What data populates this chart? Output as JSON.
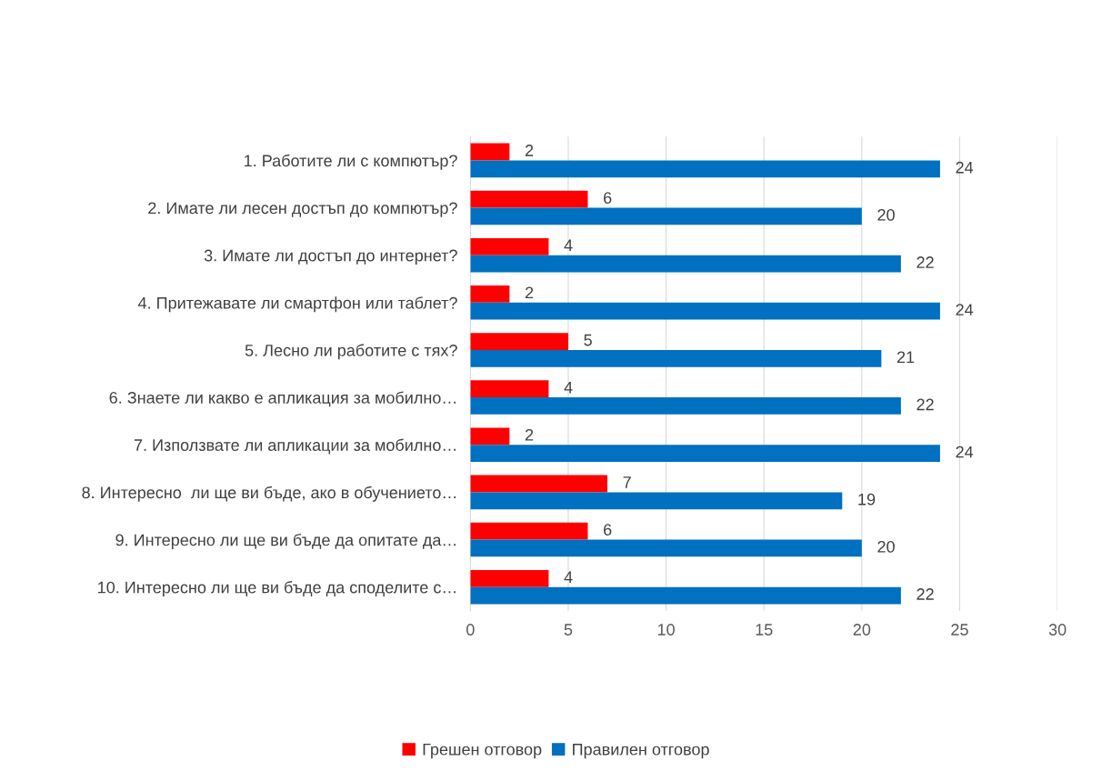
{
  "chart_data": {
    "type": "bar",
    "orientation": "horizontal",
    "categories": [
      "1. Работите ли с компютър?",
      "2. Имате ли лесен достъп до компютър?",
      "3. Имате ли достъп до интернет?",
      "4. Притежавате ли смартфон или таблет?",
      "5. Лесно ли работите с тях?",
      "6. Знаете ли какво е апликация за мобилно…",
      "7. Използвате ли апликации за мобилно…",
      "8. Интересно  ли ще ви бъде, ако в обучението…",
      "9. Интересно ли ще ви бъде да опитате да…",
      "10. Интересно ли ще ви бъде да споделите с…"
    ],
    "series": [
      {
        "name": "Грешен отговор",
        "color": "#ff0000",
        "values": [
          2,
          6,
          4,
          2,
          5,
          4,
          2,
          7,
          6,
          4
        ]
      },
      {
        "name": "Правилен отговор",
        "color": "#0070c0",
        "values": [
          24,
          20,
          22,
          24,
          21,
          22,
          24,
          19,
          20,
          22
        ]
      }
    ],
    "xlim": [
      0,
      30
    ],
    "xticks": [
      0,
      5,
      10,
      15,
      20,
      25,
      30
    ],
    "grid": "x",
    "legend": "bottom",
    "data_labels": true
  }
}
